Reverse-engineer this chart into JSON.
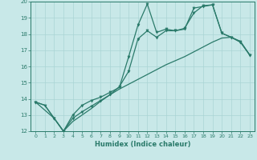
{
  "title": "",
  "xlabel": "Humidex (Indice chaleur)",
  "bg_color": "#c8e8e8",
  "line_color": "#2a7a6a",
  "grid_color": "#aad4d4",
  "xlim": [
    -0.5,
    23.5
  ],
  "ylim": [
    12,
    20
  ],
  "xticks": [
    0,
    1,
    2,
    3,
    4,
    5,
    6,
    7,
    8,
    9,
    10,
    11,
    12,
    13,
    14,
    15,
    16,
    17,
    18,
    19,
    20,
    21,
    22,
    23
  ],
  "yticks": [
    12,
    13,
    14,
    15,
    16,
    17,
    18,
    19,
    20
  ],
  "line1_x": [
    0,
    1,
    2,
    3,
    4,
    5,
    6,
    7,
    8,
    9,
    10,
    11,
    12,
    13,
    14,
    15,
    16,
    17,
    18,
    19,
    20,
    21,
    22,
    23
  ],
  "line1_y": [
    13.8,
    13.6,
    12.8,
    12.0,
    13.0,
    13.6,
    13.9,
    14.1,
    14.4,
    14.7,
    16.6,
    18.55,
    19.85,
    18.1,
    18.3,
    18.2,
    18.35,
    19.3,
    19.75,
    19.8,
    18.05,
    17.8,
    17.55,
    16.7
  ],
  "line2_x": [
    0,
    2,
    3,
    4,
    5,
    6,
    7,
    8,
    9,
    10,
    11,
    12,
    13,
    14,
    15,
    16,
    17,
    18,
    19,
    20,
    21,
    22,
    23
  ],
  "line2_y": [
    13.8,
    12.8,
    12.0,
    12.8,
    13.2,
    13.55,
    13.9,
    14.25,
    14.75,
    15.7,
    17.7,
    18.2,
    17.8,
    18.2,
    18.2,
    18.3,
    19.6,
    19.7,
    19.8,
    18.05,
    17.8,
    17.5,
    16.7
  ],
  "line3_x": [
    0,
    1,
    2,
    3,
    4,
    5,
    6,
    7,
    8,
    9,
    10,
    11,
    12,
    13,
    14,
    15,
    16,
    17,
    18,
    19,
    20,
    21,
    22,
    23
  ],
  "line3_y": [
    13.8,
    13.6,
    12.8,
    12.0,
    12.6,
    13.0,
    13.4,
    13.85,
    14.25,
    14.6,
    14.9,
    15.2,
    15.5,
    15.8,
    16.1,
    16.35,
    16.6,
    16.9,
    17.2,
    17.5,
    17.75,
    17.8,
    17.5,
    16.7
  ]
}
